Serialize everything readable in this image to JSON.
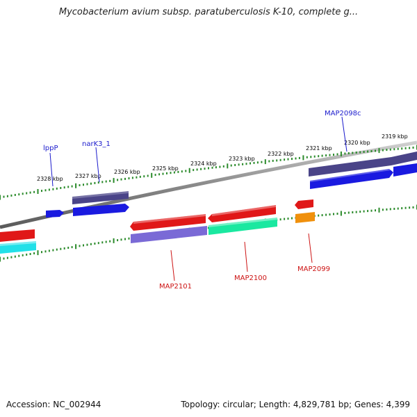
{
  "title": "Mycobacterium avium subsp. paratuberculosis K-10, complete g...",
  "accession_text": "Accession: NC_002944",
  "topology_text": "Topology: circular; Length: 4,829,781 bp; Genes: 4,399",
  "colors": {
    "backbone": "#8a8a8a",
    "ticks": "#2a8a2a",
    "forward_label": "#1a1acc",
    "reverse_label": "#cc1111",
    "dark_purple": "#4a4488",
    "blue": "#1a1ae0",
    "red": "#e01818",
    "light_purple": "#7a6ad6",
    "spring_green": "#1ae8a0",
    "cyan": "#22e0e8",
    "orange": "#f0900c"
  },
  "kbp_labels": [
    "2328 kbp",
    "2327 kbp",
    "2326 kbp",
    "2325 kbp",
    "2324 kbp",
    "2323 kbp",
    "2322 kbp",
    "2321 kbp",
    "2320 kbp",
    "2319 kbp"
  ],
  "gene_labels": [
    {
      "text": "lppP",
      "strand": "forward"
    },
    {
      "text": "narK3_1",
      "strand": "forward"
    },
    {
      "text": "MAP2098c",
      "strand": "forward"
    },
    {
      "text": "MAP2101",
      "strand": "reverse"
    },
    {
      "text": "MAP2100",
      "strand": "reverse"
    },
    {
      "text": "MAP2099",
      "strand": "reverse"
    }
  ]
}
